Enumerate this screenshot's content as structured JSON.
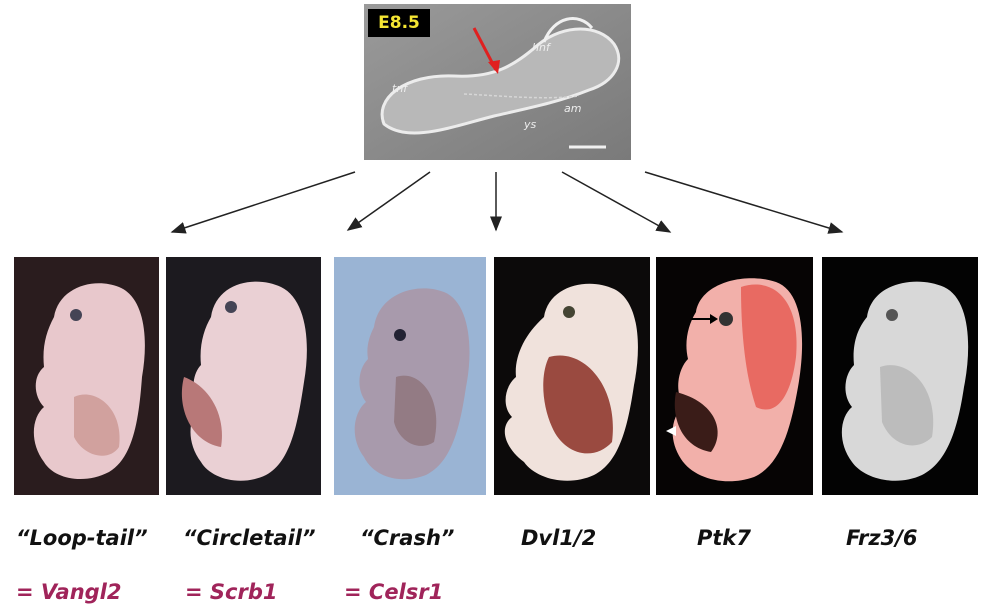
{
  "top_image": {
    "stage_label": "E8.5",
    "stage_label_color": "#f5e633",
    "annotations": {
      "hnf": "hnf",
      "tnf": "tnf",
      "am": "am",
      "ys": "ys"
    },
    "arrow_color": "#e02020"
  },
  "panels": [
    {
      "label": "“Loop-tail”",
      "gene": "= Vangl2"
    },
    {
      "label": "“Circletail”",
      "gene": "= Scrb1"
    },
    {
      "label": "“Crash”",
      "gene": "= Celsr1"
    },
    {
      "label": "Dvl1/2"
    },
    {
      "label": "Ptk7"
    },
    {
      "label": "Frz3/6"
    }
  ],
  "gene_color": "#a0245a"
}
